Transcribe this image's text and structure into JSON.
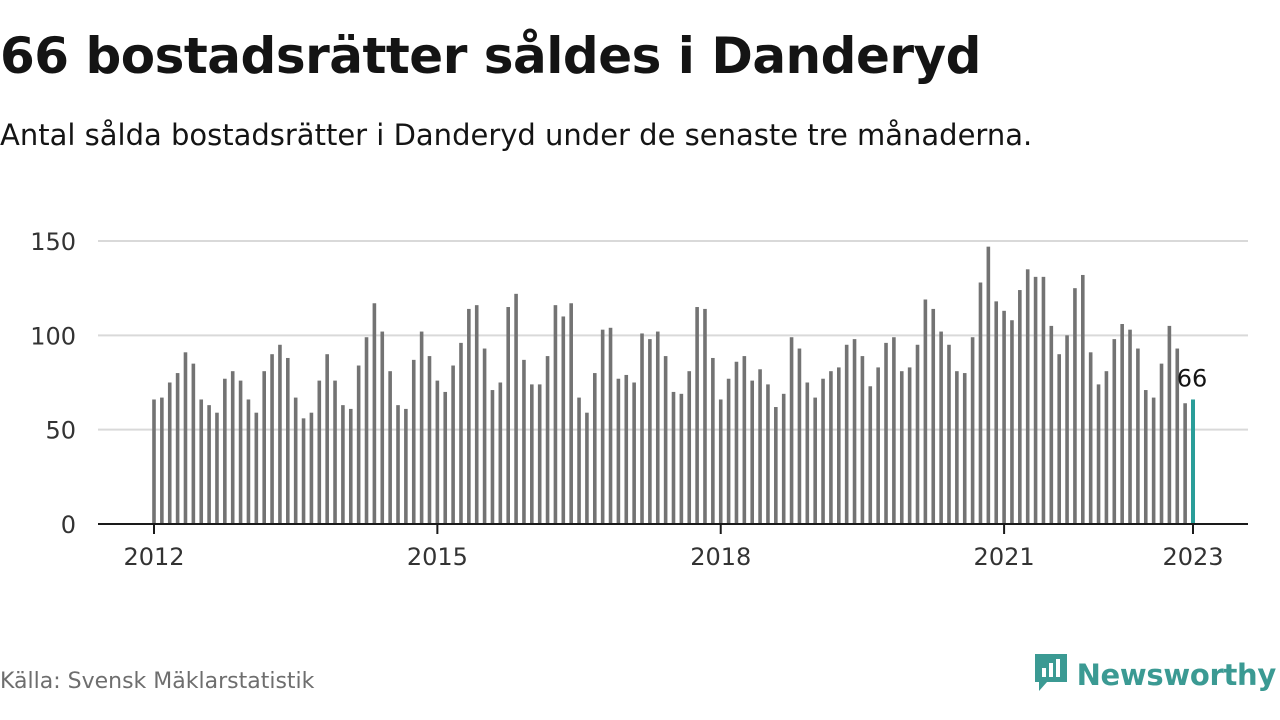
{
  "header": {
    "title": "66 bostadsrätter såldes i Danderyd",
    "subtitle": "Antal sålda bostadsrätter i Danderyd under de senaste tre månaderna."
  },
  "footer": {
    "source": "Källa: Svensk Mäklarstatistik",
    "brand": "Newsworthy",
    "brand_icon": "newsworthy-logo-icon"
  },
  "colors": {
    "bar": "#737373",
    "highlight": "#2a9d99",
    "grid": "#d9d9d9",
    "axis": "#1a1a1a",
    "brand": "#3b9a93"
  },
  "chart_data": {
    "type": "bar",
    "x_start": "2012-01",
    "x_end": "2023-01",
    "x_ticks": [
      "2012",
      "2015",
      "2018",
      "2021",
      "2023"
    ],
    "y_ticks": [
      0,
      50,
      100,
      150
    ],
    "ylim": [
      0,
      150
    ],
    "grid": true,
    "highlight_label": "66",
    "values": [
      66,
      67,
      75,
      80,
      91,
      85,
      66,
      63,
      59,
      77,
      81,
      76,
      66,
      59,
      81,
      90,
      95,
      88,
      67,
      56,
      59,
      76,
      90,
      76,
      63,
      61,
      84,
      99,
      117,
      102,
      81,
      63,
      61,
      87,
      102,
      89,
      76,
      70,
      84,
      96,
      114,
      116,
      93,
      71,
      75,
      115,
      122,
      87,
      74,
      74,
      89,
      116,
      110,
      117,
      67,
      59,
      80,
      103,
      104,
      77,
      79,
      75,
      101,
      98,
      102,
      89,
      70,
      69,
      81,
      115,
      114,
      88,
      66,
      77,
      86,
      89,
      76,
      82,
      74,
      62,
      69,
      99,
      93,
      75,
      67,
      77,
      81,
      83,
      95,
      98,
      89,
      73,
      83,
      96,
      99,
      81,
      83,
      95,
      119,
      114,
      102,
      95,
      81,
      80,
      99,
      128,
      147,
      118,
      113,
      108,
      124,
      135,
      131,
      131,
      105,
      90,
      100,
      125,
      132,
      91,
      74,
      81,
      98,
      106,
      103,
      93,
      71,
      67,
      85,
      105,
      93,
      64,
      66
    ]
  }
}
